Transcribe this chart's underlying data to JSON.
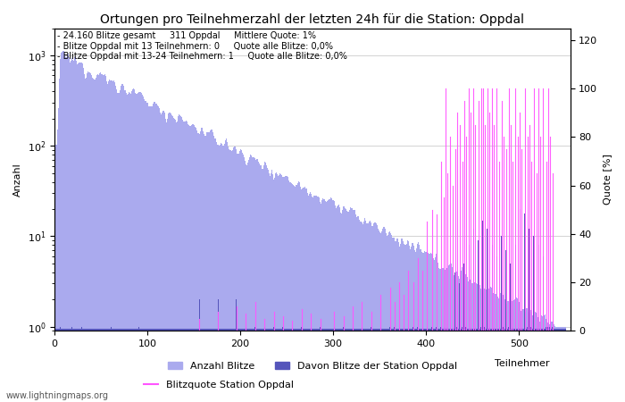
{
  "title": "Ortungen pro Teilnehmerzahl der letzten 24h für die Station: Oppdal",
  "xlabel": "Teilnehmer",
  "ylabel_left": "Anzahl",
  "ylabel_right": "Quote [%]",
  "annotation_lines": [
    "- 24.160 Blitze gesamt     311 Oppdal     Mittlere Quote: 1%",
    "- Blitze Oppdal mit 13 Teilnehmern: 0     Quote alle Blitze: 0,0%",
    "- Blitze Oppdal mit 13-24 Teilnehmern: 1     Quote alle Blitze: 0,0%"
  ],
  "watermark": "www.lightningmaps.org",
  "bar_color_light": "#AAAAEE",
  "bar_color_dark": "#5555BB",
  "line_color": "#FF55FF",
  "grid_color": "#999999",
  "background_color": "#FFFFFF",
  "xlim": [
    0,
    555
  ],
  "ylim_log": [
    0.9,
    2000
  ],
  "ylim_right": [
    0,
    125
  ],
  "yticks_right": [
    0,
    20,
    40,
    60,
    80,
    100,
    120
  ],
  "legend_labels": [
    "Anzahl Blitze",
    "Davon Blitze der Station Oppdal",
    "Blitzquote Station Oppdal"
  ],
  "title_fontsize": 10,
  "annotation_fontsize": 7,
  "axis_fontsize": 8,
  "tick_fontsize": 8,
  "fig_width": 7.0,
  "fig_height": 4.5,
  "dpi": 100
}
